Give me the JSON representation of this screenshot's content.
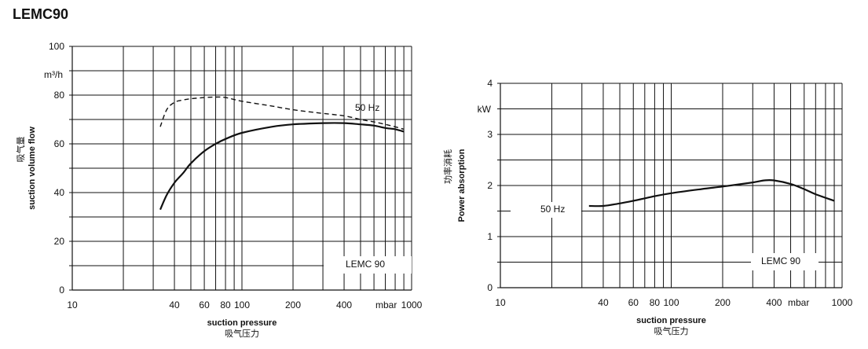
{
  "page": {
    "title": "LEMC90"
  },
  "chart_data": [
    {
      "type": "line",
      "xscale": "log",
      "xlim": [
        10,
        1000
      ],
      "ylim": [
        0,
        100
      ],
      "x_tick_values": [
        10,
        40,
        60,
        80,
        100,
        200,
        400,
        1000
      ],
      "x_tick_labels": [
        "10",
        "40",
        "60",
        "80",
        "100",
        "200",
        "400",
        "1000"
      ],
      "x_unit": "mbar",
      "y_tick_values": [
        0,
        20,
        40,
        60,
        80,
        100
      ],
      "y_tick_labels": [
        "0",
        "20",
        "40",
        "60",
        "80",
        "100"
      ],
      "y_unit": "m³/h",
      "xlabel": "suction pressure",
      "xlabel_cn": "吸气压力",
      "ylabel": "suction volume flow",
      "ylabel_cn": "吸气量",
      "grid": true,
      "model_label": "LEMC 90",
      "series": [
        {
          "name": "50 Hz",
          "style": "dashed",
          "x": [
            33,
            36,
            40,
            45,
            50,
            60,
            70,
            80,
            100,
            150,
            200,
            300,
            400,
            500,
            600,
            700,
            800,
            900
          ],
          "y": [
            67,
            74,
            77,
            78,
            78.5,
            79,
            79.2,
            79,
            77.5,
            75.5,
            74,
            72.5,
            71.5,
            70,
            69,
            68,
            67,
            66
          ]
        },
        {
          "name": "",
          "style": "solid",
          "x": [
            33,
            36,
            40,
            45,
            50,
            60,
            70,
            80,
            100,
            150,
            200,
            300,
            400,
            500,
            600,
            700,
            800,
            900
          ],
          "y": [
            33,
            39,
            44,
            48,
            52,
            57,
            60,
            62,
            64.5,
            67,
            68,
            68.5,
            68.5,
            68,
            67.5,
            66.5,
            66,
            65
          ]
        }
      ]
    },
    {
      "type": "line",
      "xscale": "log",
      "xlim": [
        10,
        1000
      ],
      "ylim": [
        0,
        4
      ],
      "x_tick_values": [
        10,
        40,
        60,
        80,
        100,
        200,
        400,
        1000
      ],
      "x_tick_labels": [
        "10",
        "40",
        "60",
        "80",
        "100",
        "200",
        "400",
        "1000"
      ],
      "x_unit": "mbar",
      "y_tick_values": [
        0,
        1,
        2,
        3,
        4
      ],
      "y_tick_labels": [
        "0",
        "1",
        "2",
        "3",
        "4"
      ],
      "y_unit": "kW",
      "xlabel": "suction pressure",
      "xlabel_cn": "吸气压力",
      "ylabel": "Power absorption",
      "ylabel_cn": "功率消耗",
      "grid": true,
      "model_label": "LEMC 90",
      "series": [
        {
          "name": "50 Hz",
          "style": "solid",
          "x": [
            33,
            40,
            50,
            60,
            80,
            100,
            150,
            200,
            300,
            350,
            400,
            500,
            600,
            700,
            900
          ],
          "y": [
            1.6,
            1.6,
            1.65,
            1.7,
            1.79,
            1.85,
            1.93,
            1.98,
            2.06,
            2.1,
            2.1,
            2.03,
            1.93,
            1.83,
            1.7
          ]
        }
      ]
    }
  ]
}
